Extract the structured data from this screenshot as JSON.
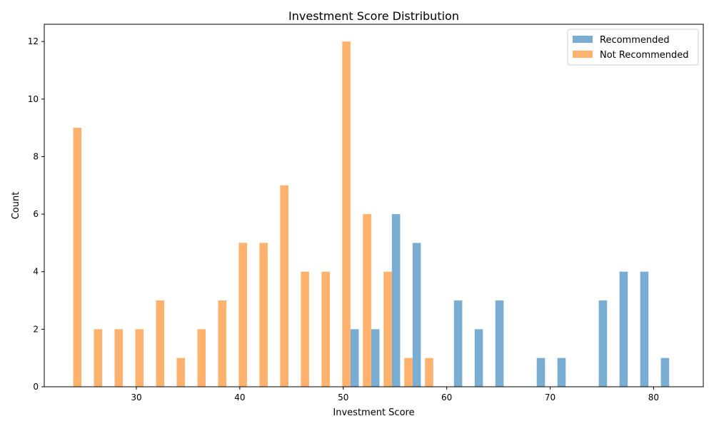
{
  "chart_data": {
    "type": "bar",
    "title": "Investment Score Distribution",
    "xlabel": "Investment Score",
    "ylabel": "Count",
    "xlim": [
      21.1,
      84.8
    ],
    "ylim": [
      0,
      12.6
    ],
    "xticks": [
      30,
      40,
      50,
      60,
      70,
      80
    ],
    "yticks": [
      0,
      2,
      4,
      6,
      8,
      10,
      12
    ],
    "grid": false,
    "legend_position": "top-right",
    "series": [
      {
        "name": "Recommended",
        "color": "#1f77b4",
        "bars": [
          {
            "x": 51.1,
            "value": 2
          },
          {
            "x": 53.1,
            "value": 2
          },
          {
            "x": 55.1,
            "value": 6
          },
          {
            "x": 57.1,
            "value": 5
          },
          {
            "x": 61.1,
            "value": 3
          },
          {
            "x": 63.1,
            "value": 2
          },
          {
            "x": 65.1,
            "value": 3
          },
          {
            "x": 69.1,
            "value": 1
          },
          {
            "x": 71.1,
            "value": 1
          },
          {
            "x": 75.1,
            "value": 3
          },
          {
            "x": 77.1,
            "value": 4
          },
          {
            "x": 79.1,
            "value": 4
          },
          {
            "x": 81.1,
            "value": 1
          }
        ]
      },
      {
        "name": "Not Recommended",
        "color": "#ff7f0e",
        "bars": [
          {
            "x": 24.3,
            "value": 9
          },
          {
            "x": 26.3,
            "value": 2
          },
          {
            "x": 28.3,
            "value": 2
          },
          {
            "x": 30.3,
            "value": 2
          },
          {
            "x": 32.3,
            "value": 3
          },
          {
            "x": 34.3,
            "value": 1
          },
          {
            "x": 36.3,
            "value": 2
          },
          {
            "x": 38.3,
            "value": 3
          },
          {
            "x": 40.3,
            "value": 5
          },
          {
            "x": 42.3,
            "value": 5
          },
          {
            "x": 44.3,
            "value": 7
          },
          {
            "x": 46.3,
            "value": 4
          },
          {
            "x": 48.3,
            "value": 4
          },
          {
            "x": 50.3,
            "value": 12
          },
          {
            "x": 52.3,
            "value": 6
          },
          {
            "x": 54.3,
            "value": 4
          },
          {
            "x": 56.3,
            "value": 1
          },
          {
            "x": 58.3,
            "value": 1
          }
        ]
      }
    ]
  }
}
